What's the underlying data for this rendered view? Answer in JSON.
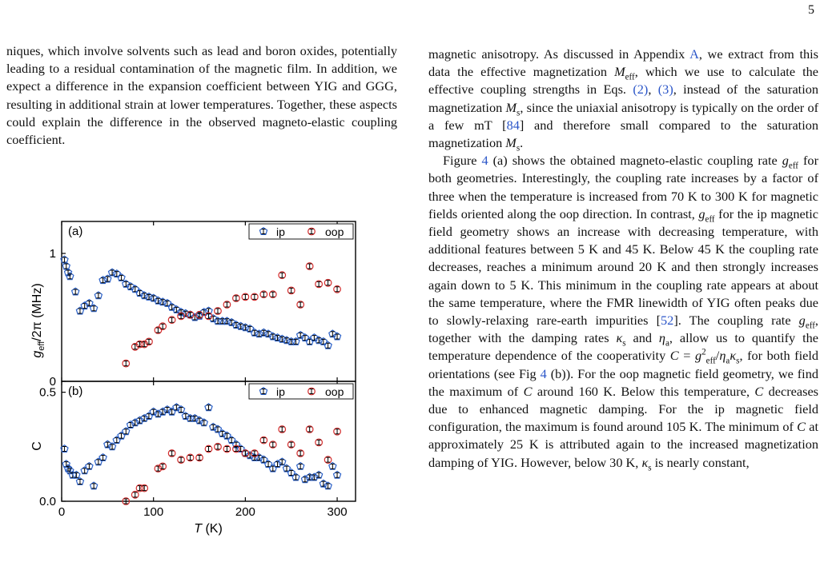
{
  "page_number": "5",
  "left_text": "niques, which involve solvents such as lead and boron oxides, potentially leading to a residual contamination of the magnetic film. In addition, we expect a difference in the expansion coefficient between YIG and GGG, resulting in additional strain at lower temperatures. Together, these aspects could explain the difference in the observed magneto-elastic coupling coefficient.",
  "right_text": {
    "p1": [
      "magnetic anisotropy. As discussed in Appendix ",
      "A",
      ", we extract from this data the effective magnetization ",
      "M",
      "eff",
      ", which we use to calculate the effective coupling strengths in Eqs. ",
      "(2)",
      ", ",
      "(3)",
      ", instead of the saturation magnetization ",
      "M",
      "s",
      ", since the uniaxial anisotropy is typically on the order of a few mT [",
      "84",
      "] and therefore small compared to the saturation magnetization ",
      "M",
      "s",
      "."
    ],
    "p2": [
      "Figure ",
      "4",
      " (a) shows the obtained magneto-elastic coupling rate ",
      "g",
      "eff",
      " for both geometries. Interestingly, the coupling rate increases by a factor of three when the temperature is increased from 70 K to 300 K for magnetic fields oriented along the oop direction. In contrast, ",
      "g",
      "eff",
      " for the ip magnetic field geometry shows an increase with decreasing temperature, with additional features between 5 K and 45 K. Below 45 K the coupling rate decreases, reaches a minimum around 20 K and then strongly increases again down to 5 K. This minimum in the coupling rate appears at about the same temperature, where the FMR linewidth of YIG often peaks due to slowly-relaxing rare-earth impurities [",
      "52",
      "]. The coupling rate ",
      "g",
      "eff",
      ", together with the damping rates ",
      "κ",
      "s",
      " and ",
      "η",
      "a",
      ", allow us to quantify the temperature dependence of the cooperativity ",
      "C",
      " = ",
      "g",
      "2",
      "eff",
      "/",
      "η",
      "a",
      "κ",
      "s",
      ", for both field orientations (see Fig ",
      "4",
      " (b)). For the oop magnetic field geometry, we find the maximum of ",
      "C",
      " around 160 K. Below this temperature, ",
      "C",
      " decreases due to enhanced magnetic damping. For the ip magnetic field configuration, the maximum is found around 105 K. The minimum of ",
      "C",
      " at approximately 25 K is attributed again to the increased magnetization damping of YIG. However, below 30 K, ",
      "κ",
      "s",
      " is nearly constant,"
    ]
  },
  "chart_data": [
    {
      "type": "scatter",
      "panel_label": "(a)",
      "ylabel": "g_eff/2π (MHz)",
      "ylabel_parts": [
        "g",
        "eff",
        "/2π (MHz)"
      ],
      "xlim": [
        0,
        320
      ],
      "ylim": [
        0,
        1.25
      ],
      "y_ticks": [
        "0",
        "1"
      ],
      "legend_placement": "top-right",
      "legend": [
        "ip",
        "oop"
      ],
      "colors": {
        "ip": "#2c62c9",
        "oop": "#d42c2c"
      },
      "series": [
        {
          "name": "ip",
          "marker": "pentagon",
          "points": [
            [
              3,
              0.95
            ],
            [
              5,
              0.9
            ],
            [
              7,
              0.85
            ],
            [
              9,
              0.82
            ],
            [
              15,
              0.7
            ],
            [
              20,
              0.55
            ],
            [
              25,
              0.59
            ],
            [
              30,
              0.61
            ],
            [
              35,
              0.57
            ],
            [
              40,
              0.67
            ],
            [
              45,
              0.79
            ],
            [
              50,
              0.8
            ],
            [
              55,
              0.85
            ],
            [
              60,
              0.84
            ],
            [
              65,
              0.81
            ],
            [
              70,
              0.76
            ],
            [
              75,
              0.74
            ],
            [
              80,
              0.72
            ],
            [
              85,
              0.69
            ],
            [
              90,
              0.67
            ],
            [
              95,
              0.66
            ],
            [
              100,
              0.65
            ],
            [
              105,
              0.63
            ],
            [
              110,
              0.62
            ],
            [
              115,
              0.61
            ],
            [
              120,
              0.58
            ],
            [
              125,
              0.56
            ],
            [
              130,
              0.54
            ],
            [
              135,
              0.53
            ],
            [
              140,
              0.52
            ],
            [
              145,
              0.5
            ],
            [
              150,
              0.51
            ],
            [
              155,
              0.54
            ],
            [
              160,
              0.55
            ],
            [
              165,
              0.49
            ],
            [
              170,
              0.47
            ],
            [
              175,
              0.47
            ],
            [
              180,
              0.47
            ],
            [
              185,
              0.46
            ],
            [
              190,
              0.44
            ],
            [
              195,
              0.43
            ],
            [
              200,
              0.42
            ],
            [
              205,
              0.41
            ],
            [
              210,
              0.38
            ],
            [
              215,
              0.37
            ],
            [
              220,
              0.38
            ],
            [
              225,
              0.37
            ],
            [
              230,
              0.35
            ],
            [
              235,
              0.34
            ],
            [
              240,
              0.33
            ],
            [
              245,
              0.32
            ],
            [
              250,
              0.31
            ],
            [
              255,
              0.31
            ],
            [
              260,
              0.36
            ],
            [
              265,
              0.34
            ],
            [
              270,
              0.31
            ],
            [
              275,
              0.34
            ],
            [
              280,
              0.32
            ],
            [
              285,
              0.31
            ],
            [
              290,
              0.28
            ],
            [
              295,
              0.37
            ],
            [
              300,
              0.35
            ]
          ]
        },
        {
          "name": "oop",
          "marker": "circle",
          "points": [
            [
              70,
              0.14
            ],
            [
              80,
              0.27
            ],
            [
              85,
              0.29
            ],
            [
              90,
              0.29
            ],
            [
              95,
              0.31
            ],
            [
              105,
              0.4
            ],
            [
              110,
              0.43
            ],
            [
              120,
              0.48
            ],
            [
              130,
              0.51
            ],
            [
              140,
              0.52
            ],
            [
              150,
              0.52
            ],
            [
              160,
              0.51
            ],
            [
              170,
              0.55
            ],
            [
              180,
              0.6
            ],
            [
              190,
              0.65
            ],
            [
              200,
              0.66
            ],
            [
              210,
              0.66
            ],
            [
              220,
              0.68
            ],
            [
              230,
              0.68
            ],
            [
              240,
              0.83
            ],
            [
              250,
              0.71
            ],
            [
              260,
              0.6
            ],
            [
              270,
              0.9
            ],
            [
              280,
              0.76
            ],
            [
              290,
              0.77
            ],
            [
              300,
              0.72
            ]
          ]
        }
      ]
    },
    {
      "type": "scatter",
      "panel_label": "(b)",
      "ylabel": "C",
      "xlabel": "T (K)",
      "xlabel_parts": [
        "T",
        " (K)"
      ],
      "xlim": [
        0,
        320
      ],
      "ylim": [
        0,
        0.55
      ],
      "x_ticks": [
        "0",
        "100",
        "200",
        "300"
      ],
      "y_ticks": [
        "0.0",
        "0.5"
      ],
      "legend_placement": "top-right",
      "legend": [
        "ip",
        "oop"
      ],
      "series": [
        {
          "name": "ip",
          "marker": "pentagon",
          "points": [
            [
              3,
              0.24
            ],
            [
              5,
              0.17
            ],
            [
              7,
              0.15
            ],
            [
              9,
              0.14
            ],
            [
              12,
              0.12
            ],
            [
              16,
              0.12
            ],
            [
              20,
              0.09
            ],
            [
              25,
              0.14
            ],
            [
              30,
              0.16
            ],
            [
              35,
              0.07
            ],
            [
              40,
              0.18
            ],
            [
              45,
              0.2
            ],
            [
              50,
              0.26
            ],
            [
              55,
              0.25
            ],
            [
              60,
              0.28
            ],
            [
              65,
              0.3
            ],
            [
              70,
              0.32
            ],
            [
              75,
              0.35
            ],
            [
              80,
              0.36
            ],
            [
              85,
              0.37
            ],
            [
              90,
              0.38
            ],
            [
              95,
              0.39
            ],
            [
              100,
              0.41
            ],
            [
              105,
              0.4
            ],
            [
              110,
              0.41
            ],
            [
              115,
              0.42
            ],
            [
              120,
              0.41
            ],
            [
              125,
              0.43
            ],
            [
              130,
              0.42
            ],
            [
              135,
              0.39
            ],
            [
              140,
              0.38
            ],
            [
              145,
              0.38
            ],
            [
              150,
              0.37
            ],
            [
              155,
              0.36
            ],
            [
              160,
              0.43
            ],
            [
              165,
              0.34
            ],
            [
              170,
              0.33
            ],
            [
              175,
              0.31
            ],
            [
              180,
              0.3
            ],
            [
              185,
              0.28
            ],
            [
              190,
              0.26
            ],
            [
              195,
              0.24
            ],
            [
              200,
              0.22
            ],
            [
              205,
              0.21
            ],
            [
              210,
              0.2
            ],
            [
              215,
              0.2
            ],
            [
              220,
              0.19
            ],
            [
              225,
              0.17
            ],
            [
              230,
              0.15
            ],
            [
              235,
              0.17
            ],
            [
              240,
              0.18
            ],
            [
              245,
              0.15
            ],
            [
              250,
              0.13
            ],
            [
              255,
              0.11
            ],
            [
              260,
              0.16
            ],
            [
              265,
              0.1
            ],
            [
              270,
              0.11
            ],
            [
              275,
              0.11
            ],
            [
              280,
              0.12
            ],
            [
              285,
              0.08
            ],
            [
              290,
              0.07
            ],
            [
              295,
              0.16
            ],
            [
              300,
              0.12
            ]
          ]
        },
        {
          "name": "oop",
          "marker": "circle",
          "points": [
            [
              70,
              0.0
            ],
            [
              80,
              0.03
            ],
            [
              85,
              0.06
            ],
            [
              90,
              0.06
            ],
            [
              105,
              0.15
            ],
            [
              110,
              0.16
            ],
            [
              120,
              0.22
            ],
            [
              130,
              0.19
            ],
            [
              140,
              0.2
            ],
            [
              150,
              0.2
            ],
            [
              160,
              0.24
            ],
            [
              170,
              0.25
            ],
            [
              180,
              0.24
            ],
            [
              190,
              0.24
            ],
            [
              200,
              0.22
            ],
            [
              210,
              0.22
            ],
            [
              220,
              0.28
            ],
            [
              230,
              0.26
            ],
            [
              240,
              0.33
            ],
            [
              250,
              0.26
            ],
            [
              260,
              0.22
            ],
            [
              270,
              0.33
            ],
            [
              280,
              0.27
            ],
            [
              290,
              0.19
            ],
            [
              300,
              0.32
            ]
          ]
        }
      ]
    }
  ]
}
